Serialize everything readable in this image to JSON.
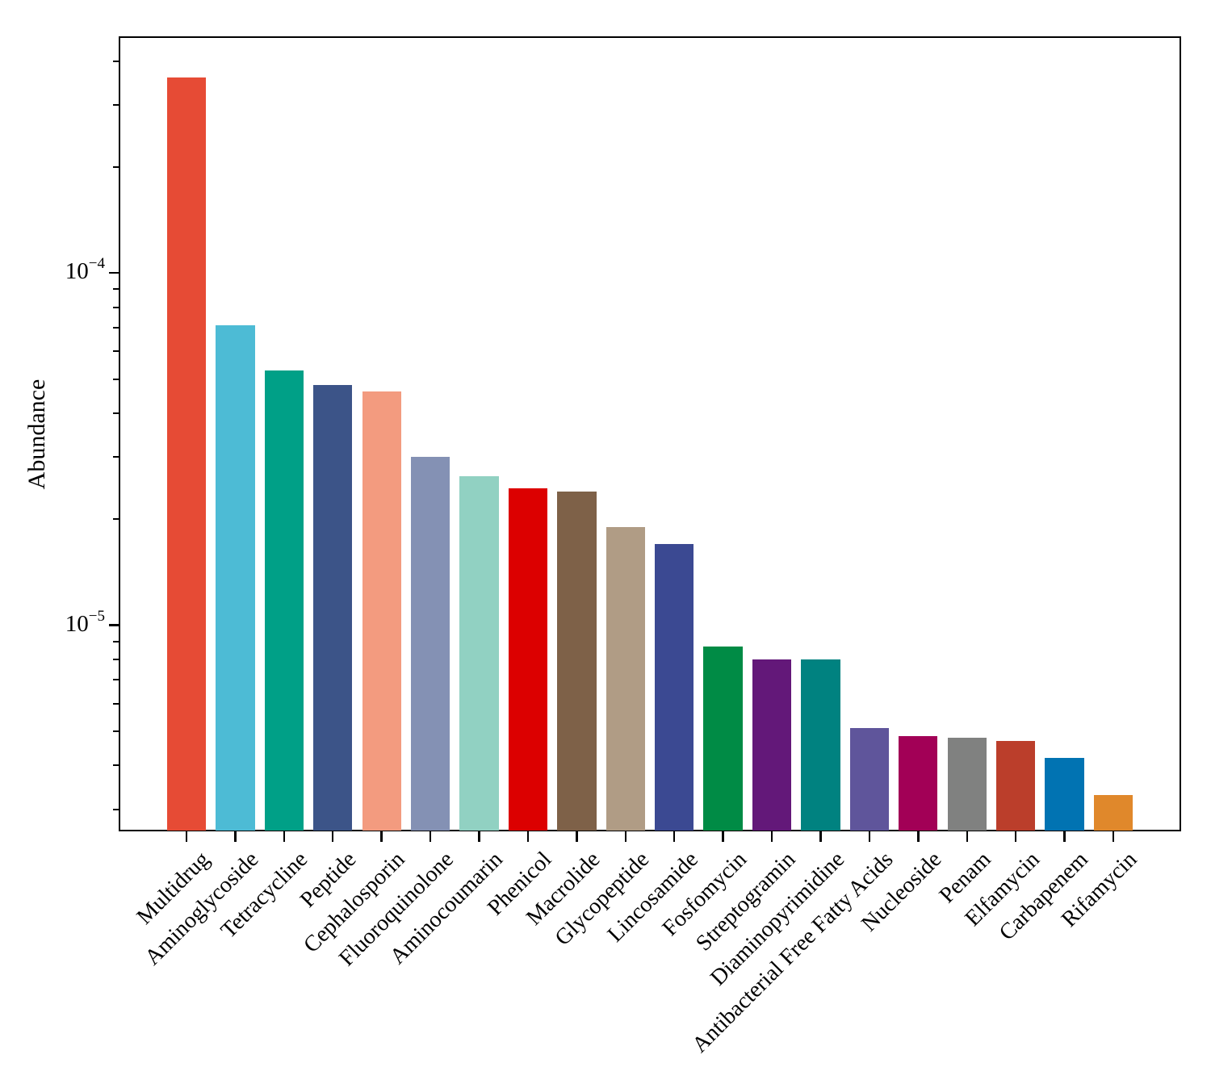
{
  "chart_data": {
    "type": "bar",
    "title": "",
    "xlabel": "",
    "ylabel": "Abundance",
    "yscale": "log",
    "ylim": [
      2.6e-06,
      0.00047
    ],
    "grid": false,
    "legend": null,
    "categories": [
      "Multidrug",
      "Aminoglycoside",
      "Tetracycline",
      "Peptide",
      "Cephalosporin",
      "Fluoroquinolone",
      "Aminocoumarin",
      "Phenicol",
      "Macrolide",
      "Glycopeptide",
      "Lincosamide",
      "Fosfomycin",
      "Streptogramin",
      "Diaminopyrimidine",
      "Antibacterial Free Fatty Acids",
      "Nucleoside",
      "Penam",
      "Elfamycin",
      "Carbapenem",
      "Rifamycin"
    ],
    "values": [
      0.00036,
      7.1e-05,
      5.3e-05,
      4.8e-05,
      4.6e-05,
      3e-05,
      2.65e-05,
      2.45e-05,
      2.4e-05,
      1.9e-05,
      1.7e-05,
      8.7e-06,
      8e-06,
      8e-06,
      5.1e-06,
      4.85e-06,
      4.8e-06,
      4.7e-06,
      4.2e-06,
      3.3e-06
    ],
    "colors": [
      "#E64B35",
      "#4DBBD5",
      "#00A087",
      "#3C5488",
      "#F39B7F",
      "#8491B4",
      "#91D1C2",
      "#DC0000",
      "#7E6148",
      "#B09C85",
      "#3B4992",
      "#008B45",
      "#631879",
      "#008280",
      "#5F559B",
      "#A20056",
      "#808180",
      "#BB3E2B",
      "#0173B2",
      "#E0882B"
    ],
    "yticks_major": [
      {
        "value": 0.0001,
        "base": "10",
        "exp": "−4"
      },
      {
        "value": 1e-05,
        "base": "10",
        "exp": "−5"
      }
    ],
    "yticks_minor_mantissas": [
      2,
      3,
      4,
      5,
      6,
      7,
      8,
      9
    ],
    "axis_color": "#000000"
  }
}
